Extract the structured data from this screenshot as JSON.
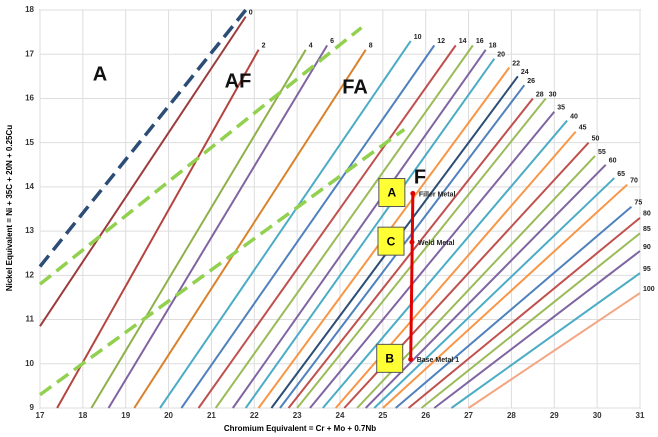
{
  "chart_data": {
    "type": "line",
    "x_label": "Chromium Equivalent = Cr + Mo + 0.7Nb",
    "y_label": "Nickel Equivalent = Ni + 35C + 20N + 0.25Cu",
    "xlim": [
      17,
      31
    ],
    "ylim": [
      9,
      18
    ],
    "xticks": [
      17,
      18,
      19,
      20,
      21,
      22,
      23,
      24,
      25,
      26,
      27,
      28,
      29,
      30,
      31
    ],
    "yticks": [
      9,
      10,
      11,
      12,
      13,
      14,
      15,
      16,
      17,
      18
    ],
    "grid": true,
    "regions": [
      "A",
      "AF",
      "FA",
      "F"
    ],
    "series": [
      {
        "name": "0",
        "color": "#9c3c3c",
        "x": [
          17,
          21.8
        ],
        "values": [
          10.85,
          17.85
        ]
      },
      {
        "name": "2",
        "color": "#b5443f",
        "x": [
          17.4,
          22.1
        ],
        "values": [
          9,
          17.1
        ]
      },
      {
        "name": "4",
        "color": "#8fb04a",
        "x": [
          18.2,
          23.2
        ],
        "values": [
          9,
          17.1
        ]
      },
      {
        "name": "6",
        "color": "#8064a2",
        "x": [
          18.6,
          23.7
        ],
        "values": [
          9,
          17.2
        ]
      },
      {
        "name": "8",
        "color": "#d9822b",
        "x": [
          19.2,
          24.6
        ],
        "values": [
          9,
          17.1
        ]
      },
      {
        "name": "10",
        "color": "#4bacc6",
        "x": [
          19.8,
          25.65
        ],
        "values": [
          9,
          17.3
        ]
      },
      {
        "name": "12",
        "color": "#4f81bd",
        "x": [
          20.3,
          26.2
        ],
        "values": [
          9,
          17.2
        ]
      },
      {
        "name": "14",
        "color": "#c0504d",
        "x": [
          20.7,
          26.7
        ],
        "values": [
          9,
          17.2
        ]
      },
      {
        "name": "16",
        "color": "#9bbb59",
        "x": [
          21.1,
          27.1
        ],
        "values": [
          9,
          17.2
        ]
      },
      {
        "name": "18",
        "color": "#8064a2",
        "x": [
          21.5,
          27.4
        ],
        "values": [
          9,
          17.1
        ]
      },
      {
        "name": "20",
        "color": "#4bacc6",
        "x": [
          21.8,
          27.6
        ],
        "values": [
          9,
          16.9
        ]
      },
      {
        "name": "22",
        "color": "#f79646",
        "x": [
          22.1,
          27.95
        ],
        "values": [
          9,
          16.7
        ]
      },
      {
        "name": "24",
        "color": "#2c4d75",
        "x": [
          22.4,
          28.15
        ],
        "values": [
          9,
          16.5
        ]
      },
      {
        "name": "26",
        "color": "#4f81bd",
        "x": [
          22.6,
          28.3
        ],
        "values": [
          9,
          16.3
        ]
      },
      {
        "name": "28",
        "color": "#c0504d",
        "x": [
          22.8,
          28.5
        ],
        "values": [
          9,
          16.0
        ]
      },
      {
        "name": "30",
        "color": "#9bbb59",
        "x": [
          23.0,
          28.8
        ],
        "values": [
          9,
          16.0
        ]
      },
      {
        "name": "35",
        "color": "#8064a2",
        "x": [
          23.3,
          29.0
        ],
        "values": [
          9,
          15.7
        ]
      },
      {
        "name": "40",
        "color": "#4bacc6",
        "x": [
          23.6,
          29.3
        ],
        "values": [
          9,
          15.5
        ]
      },
      {
        "name": "45",
        "color": "#f79646",
        "x": [
          23.9,
          29.5
        ],
        "values": [
          9,
          15.25
        ]
      },
      {
        "name": "50",
        "color": "#c0504d",
        "x": [
          24.1,
          29.8
        ],
        "values": [
          9,
          15.0
        ]
      },
      {
        "name": "55",
        "color": "#9bbb59",
        "x": [
          24.4,
          29.95
        ],
        "values": [
          9,
          14.7
        ]
      },
      {
        "name": "60",
        "color": "#8064a2",
        "x": [
          24.6,
          30.2
        ],
        "values": [
          9,
          14.5
        ]
      },
      {
        "name": "65",
        "color": "#4bacc6",
        "x": [
          24.8,
          30.4
        ],
        "values": [
          9,
          14.2
        ]
      },
      {
        "name": "70",
        "color": "#f79646",
        "x": [
          25.0,
          30.7
        ],
        "values": [
          9,
          14.05
        ]
      },
      {
        "name": "75",
        "color": "#4f81bd",
        "x": [
          25.3,
          30.8
        ],
        "values": [
          9,
          13.55
        ]
      },
      {
        "name": "80",
        "color": "#c0504d",
        "x": [
          25.6,
          31.0
        ],
        "values": [
          9,
          13.3
        ]
      },
      {
        "name": "85",
        "color": "#9bbb59",
        "x": [
          25.9,
          31.0
        ],
        "values": [
          9,
          12.95
        ]
      },
      {
        "name": "90",
        "color": "#8064a2",
        "x": [
          26.2,
          31.0
        ],
        "values": [
          9,
          12.55
        ]
      },
      {
        "name": "95",
        "color": "#4bacc6",
        "x": [
          26.6,
          31.0
        ],
        "values": [
          9,
          12.05
        ]
      },
      {
        "name": "100",
        "color": "#f4a582",
        "x": [
          27.0,
          31.0
        ],
        "values": [
          9,
          11.6
        ]
      }
    ],
    "boundaries": [
      {
        "color": "#2c4d75",
        "x": [
          17,
          21.8
        ],
        "values": [
          12.2,
          18
        ]
      },
      {
        "color": "#92d050",
        "x": [
          17,
          24.5
        ],
        "values": [
          11.8,
          17.6
        ]
      },
      {
        "color": "#92d050",
        "x": [
          17,
          25.5
        ],
        "values": [
          9.3,
          15.3
        ]
      }
    ],
    "path": {
      "color": "#e00000",
      "x": [
        25.7,
        25.65
      ],
      "values": [
        13.85,
        10.1
      ]
    },
    "points": [
      {
        "label": "A",
        "name": "Filler Metal",
        "x": 25.7,
        "y": 13.85
      },
      {
        "label": "C",
        "name": "Weld Metal",
        "x": 25.68,
        "y": 12.75
      },
      {
        "label": "B",
        "name": "Base Metal 1",
        "x": 25.65,
        "y": 10.1
      }
    ]
  }
}
